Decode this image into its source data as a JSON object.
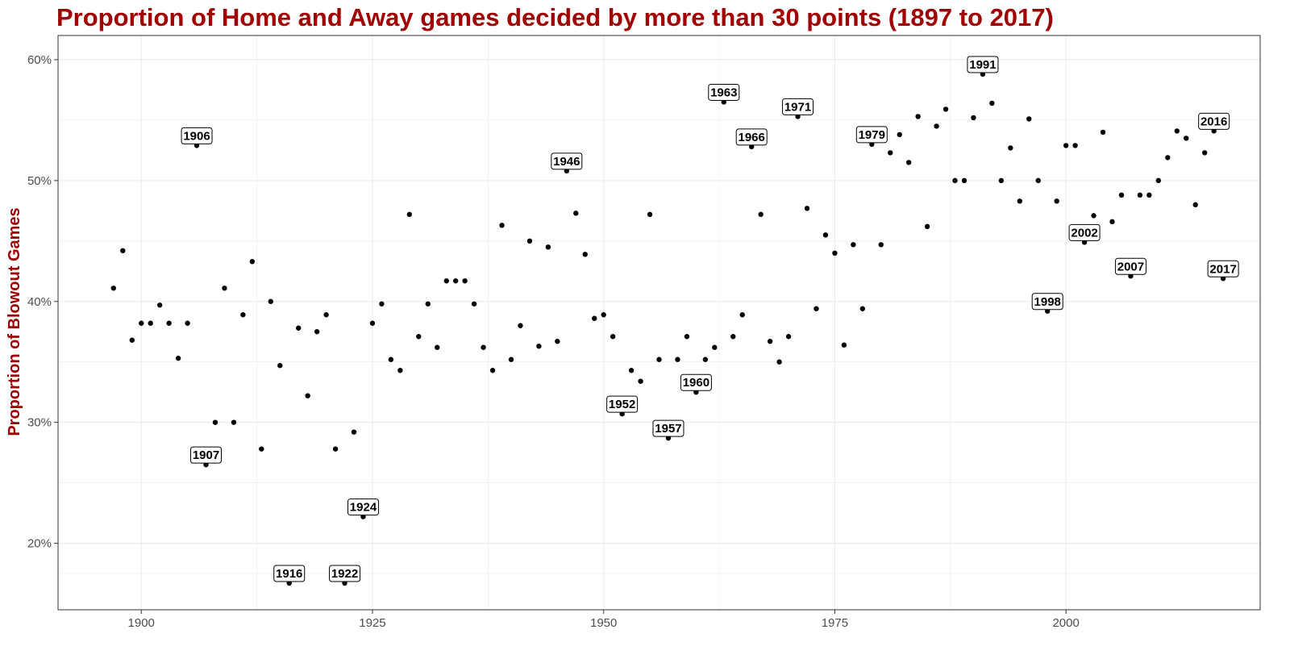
{
  "chart_data": {
    "type": "scatter",
    "title": "Proportion of Home and Away games decided by more than 30 points (1897 to 2017)",
    "xlabel": "",
    "ylabel": "Proportion of Blowout Games",
    "xlim": [
      1891,
      2021
    ],
    "ylim": [
      14.5,
      62
    ],
    "x_ticks": [
      1900,
      1925,
      1950,
      1975,
      2000
    ],
    "x_tick_labels": [
      "1900",
      "1925",
      "1950",
      "1975",
      "2000"
    ],
    "y_ticks": [
      20,
      30,
      40,
      50,
      60
    ],
    "y_tick_labels": [
      "20%",
      "30%",
      "40%",
      "50%",
      "60%"
    ],
    "grid": true,
    "series": [
      {
        "points": [
          {
            "x": 1897,
            "y": 41.1
          },
          {
            "x": 1898,
            "y": 44.2
          },
          {
            "x": 1899,
            "y": 36.8
          },
          {
            "x": 1900,
            "y": 38.2
          },
          {
            "x": 1901,
            "y": 38.2
          },
          {
            "x": 1902,
            "y": 39.7
          },
          {
            "x": 1903,
            "y": 38.2
          },
          {
            "x": 1904,
            "y": 35.3
          },
          {
            "x": 1905,
            "y": 38.2
          },
          {
            "x": 1906,
            "y": 52.9
          },
          {
            "x": 1907,
            "y": 26.5
          },
          {
            "x": 1908,
            "y": 30.0
          },
          {
            "x": 1909,
            "y": 41.1
          },
          {
            "x": 1910,
            "y": 30.0
          },
          {
            "x": 1911,
            "y": 38.9
          },
          {
            "x": 1912,
            "y": 43.3
          },
          {
            "x": 1913,
            "y": 27.8
          },
          {
            "x": 1914,
            "y": 40.0
          },
          {
            "x": 1915,
            "y": 34.7
          },
          {
            "x": 1916,
            "y": 16.7
          },
          {
            "x": 1917,
            "y": 37.8
          },
          {
            "x": 1918,
            "y": 32.2
          },
          {
            "x": 1919,
            "y": 37.5
          },
          {
            "x": 1920,
            "y": 38.9
          },
          {
            "x": 1921,
            "y": 27.8
          },
          {
            "x": 1922,
            "y": 16.7
          },
          {
            "x": 1923,
            "y": 29.2
          },
          {
            "x": 1924,
            "y": 22.2
          },
          {
            "x": 1925,
            "y": 38.2
          },
          {
            "x": 1926,
            "y": 39.8
          },
          {
            "x": 1927,
            "y": 35.2
          },
          {
            "x": 1928,
            "y": 34.3
          },
          {
            "x": 1929,
            "y": 47.2
          },
          {
            "x": 1930,
            "y": 37.1
          },
          {
            "x": 1931,
            "y": 39.8
          },
          {
            "x": 1932,
            "y": 36.2
          },
          {
            "x": 1933,
            "y": 41.7
          },
          {
            "x": 1934,
            "y": 41.7
          },
          {
            "x": 1935,
            "y": 41.7
          },
          {
            "x": 1936,
            "y": 39.8
          },
          {
            "x": 1937,
            "y": 36.2
          },
          {
            "x": 1938,
            "y": 34.3
          },
          {
            "x": 1939,
            "y": 46.3
          },
          {
            "x": 1940,
            "y": 35.2
          },
          {
            "x": 1941,
            "y": 38.0
          },
          {
            "x": 1942,
            "y": 45.0
          },
          {
            "x": 1943,
            "y": 36.3
          },
          {
            "x": 1944,
            "y": 44.5
          },
          {
            "x": 1945,
            "y": 36.7
          },
          {
            "x": 1946,
            "y": 50.8
          },
          {
            "x": 1947,
            "y": 47.3
          },
          {
            "x": 1948,
            "y": 43.9
          },
          {
            "x": 1949,
            "y": 38.6
          },
          {
            "x": 1950,
            "y": 38.9
          },
          {
            "x": 1951,
            "y": 37.1
          },
          {
            "x": 1952,
            "y": 30.7
          },
          {
            "x": 1953,
            "y": 34.3
          },
          {
            "x": 1954,
            "y": 33.4
          },
          {
            "x": 1955,
            "y": 47.2
          },
          {
            "x": 1956,
            "y": 35.2
          },
          {
            "x": 1957,
            "y": 28.7
          },
          {
            "x": 1958,
            "y": 35.2
          },
          {
            "x": 1959,
            "y": 37.1
          },
          {
            "x": 1960,
            "y": 32.5
          },
          {
            "x": 1961,
            "y": 35.2
          },
          {
            "x": 1962,
            "y": 36.2
          },
          {
            "x": 1963,
            "y": 56.5
          },
          {
            "x": 1964,
            "y": 37.1
          },
          {
            "x": 1965,
            "y": 38.9
          },
          {
            "x": 1966,
            "y": 52.8
          },
          {
            "x": 1967,
            "y": 47.2
          },
          {
            "x": 1968,
            "y": 36.7
          },
          {
            "x": 1969,
            "y": 35.0
          },
          {
            "x": 1970,
            "y": 37.1
          },
          {
            "x": 1971,
            "y": 55.3
          },
          {
            "x": 1972,
            "y": 47.7
          },
          {
            "x": 1973,
            "y": 39.4
          },
          {
            "x": 1974,
            "y": 45.5
          },
          {
            "x": 1975,
            "y": 44.0
          },
          {
            "x": 1976,
            "y": 36.4
          },
          {
            "x": 1977,
            "y": 44.7
          },
          {
            "x": 1978,
            "y": 39.4
          },
          {
            "x": 1979,
            "y": 53.0
          },
          {
            "x": 1980,
            "y": 44.7
          },
          {
            "x": 1981,
            "y": 52.3
          },
          {
            "x": 1982,
            "y": 53.8
          },
          {
            "x": 1983,
            "y": 51.5
          },
          {
            "x": 1984,
            "y": 55.3
          },
          {
            "x": 1985,
            "y": 46.2
          },
          {
            "x": 1986,
            "y": 54.5
          },
          {
            "x": 1987,
            "y": 55.9
          },
          {
            "x": 1988,
            "y": 50.0
          },
          {
            "x": 1989,
            "y": 50.0
          },
          {
            "x": 1990,
            "y": 55.2
          },
          {
            "x": 1991,
            "y": 58.8
          },
          {
            "x": 1992,
            "y": 56.4
          },
          {
            "x": 1993,
            "y": 50.0
          },
          {
            "x": 1994,
            "y": 52.7
          },
          {
            "x": 1995,
            "y": 48.3
          },
          {
            "x": 1996,
            "y": 55.1
          },
          {
            "x": 1997,
            "y": 50.0
          },
          {
            "x": 1998,
            "y": 39.2
          },
          {
            "x": 1999,
            "y": 48.3
          },
          {
            "x": 2000,
            "y": 52.9
          },
          {
            "x": 2001,
            "y": 52.9
          },
          {
            "x": 2002,
            "y": 44.9
          },
          {
            "x": 2003,
            "y": 47.1
          },
          {
            "x": 2004,
            "y": 54.0
          },
          {
            "x": 2005,
            "y": 46.6
          },
          {
            "x": 2006,
            "y": 48.8
          },
          {
            "x": 2007,
            "y": 42.1
          },
          {
            "x": 2008,
            "y": 48.8
          },
          {
            "x": 2009,
            "y": 48.8
          },
          {
            "x": 2010,
            "y": 50.0
          },
          {
            "x": 2011,
            "y": 51.9
          },
          {
            "x": 2012,
            "y": 54.1
          },
          {
            "x": 2013,
            "y": 53.5
          },
          {
            "x": 2014,
            "y": 48.0
          },
          {
            "x": 2015,
            "y": 52.3
          },
          {
            "x": 2016,
            "y": 54.1
          },
          {
            "x": 2017,
            "y": 41.9
          }
        ]
      }
    ],
    "annotations": [
      {
        "x": 1906,
        "y": 52.9,
        "text": "1906"
      },
      {
        "x": 1907,
        "y": 26.5,
        "text": "1907"
      },
      {
        "x": 1916,
        "y": 16.7,
        "text": "1916"
      },
      {
        "x": 1922,
        "y": 16.7,
        "text": "1922"
      },
      {
        "x": 1924,
        "y": 22.2,
        "text": "1924"
      },
      {
        "x": 1946,
        "y": 50.8,
        "text": "1946"
      },
      {
        "x": 1952,
        "y": 30.7,
        "text": "1952"
      },
      {
        "x": 1957,
        "y": 28.7,
        "text": "1957"
      },
      {
        "x": 1960,
        "y": 32.5,
        "text": "1960"
      },
      {
        "x": 1963,
        "y": 56.5,
        "text": "1963"
      },
      {
        "x": 1966,
        "y": 52.8,
        "text": "1966"
      },
      {
        "x": 1971,
        "y": 55.3,
        "text": "1971"
      },
      {
        "x": 1979,
        "y": 53.0,
        "text": "1979"
      },
      {
        "x": 1991,
        "y": 58.8,
        "text": "1991"
      },
      {
        "x": 1998,
        "y": 39.2,
        "text": "1998"
      },
      {
        "x": 2002,
        "y": 44.9,
        "text": "2002"
      },
      {
        "x": 2007,
        "y": 42.1,
        "text": "2007"
      },
      {
        "x": 2016,
        "y": 54.1,
        "text": "2016"
      },
      {
        "x": 2017,
        "y": 41.9,
        "text": "2017"
      }
    ],
    "colors": {
      "title": "#a10000",
      "ylabel": "#a10000",
      "points": "#000000",
      "grid": "#ebebeb",
      "panel_border": "#333333"
    }
  }
}
